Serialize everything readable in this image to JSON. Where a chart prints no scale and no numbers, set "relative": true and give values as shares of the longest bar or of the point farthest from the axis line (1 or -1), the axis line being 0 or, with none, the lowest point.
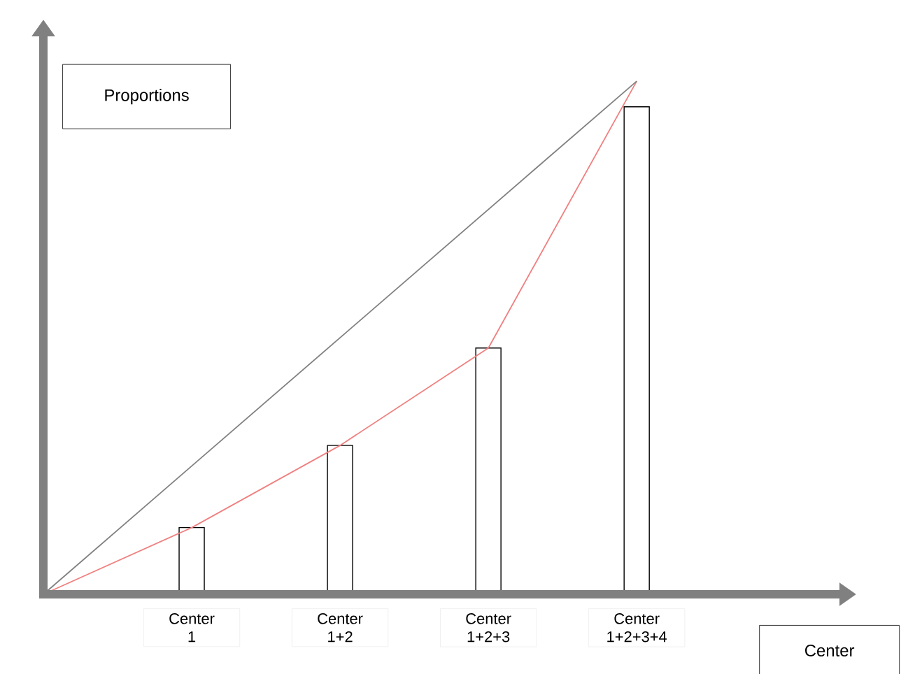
{
  "chart_data": {
    "type": "bar",
    "relative": true,
    "xlabel": "Center",
    "ylabel": "Proportions",
    "categories": [
      null,
      "Center 1",
      "Center 1+2",
      "Center 1+2+3",
      "Center 1+2+3+4"
    ],
    "series": [
      {
        "color": "#ffffff",
        "values": [
          null,
          0.13,
          0.29,
          0.48,
          0.95
        ]
      },
      {
        "type": "line",
        "color": "#f08080",
        "values": [
          0,
          0.13,
          0.29,
          0.48,
          1
        ]
      },
      {
        "type": "line",
        "color": "#808080",
        "values": [
          0,
          0.25,
          0.5,
          0.75,
          1
        ]
      }
    ]
  }
}
